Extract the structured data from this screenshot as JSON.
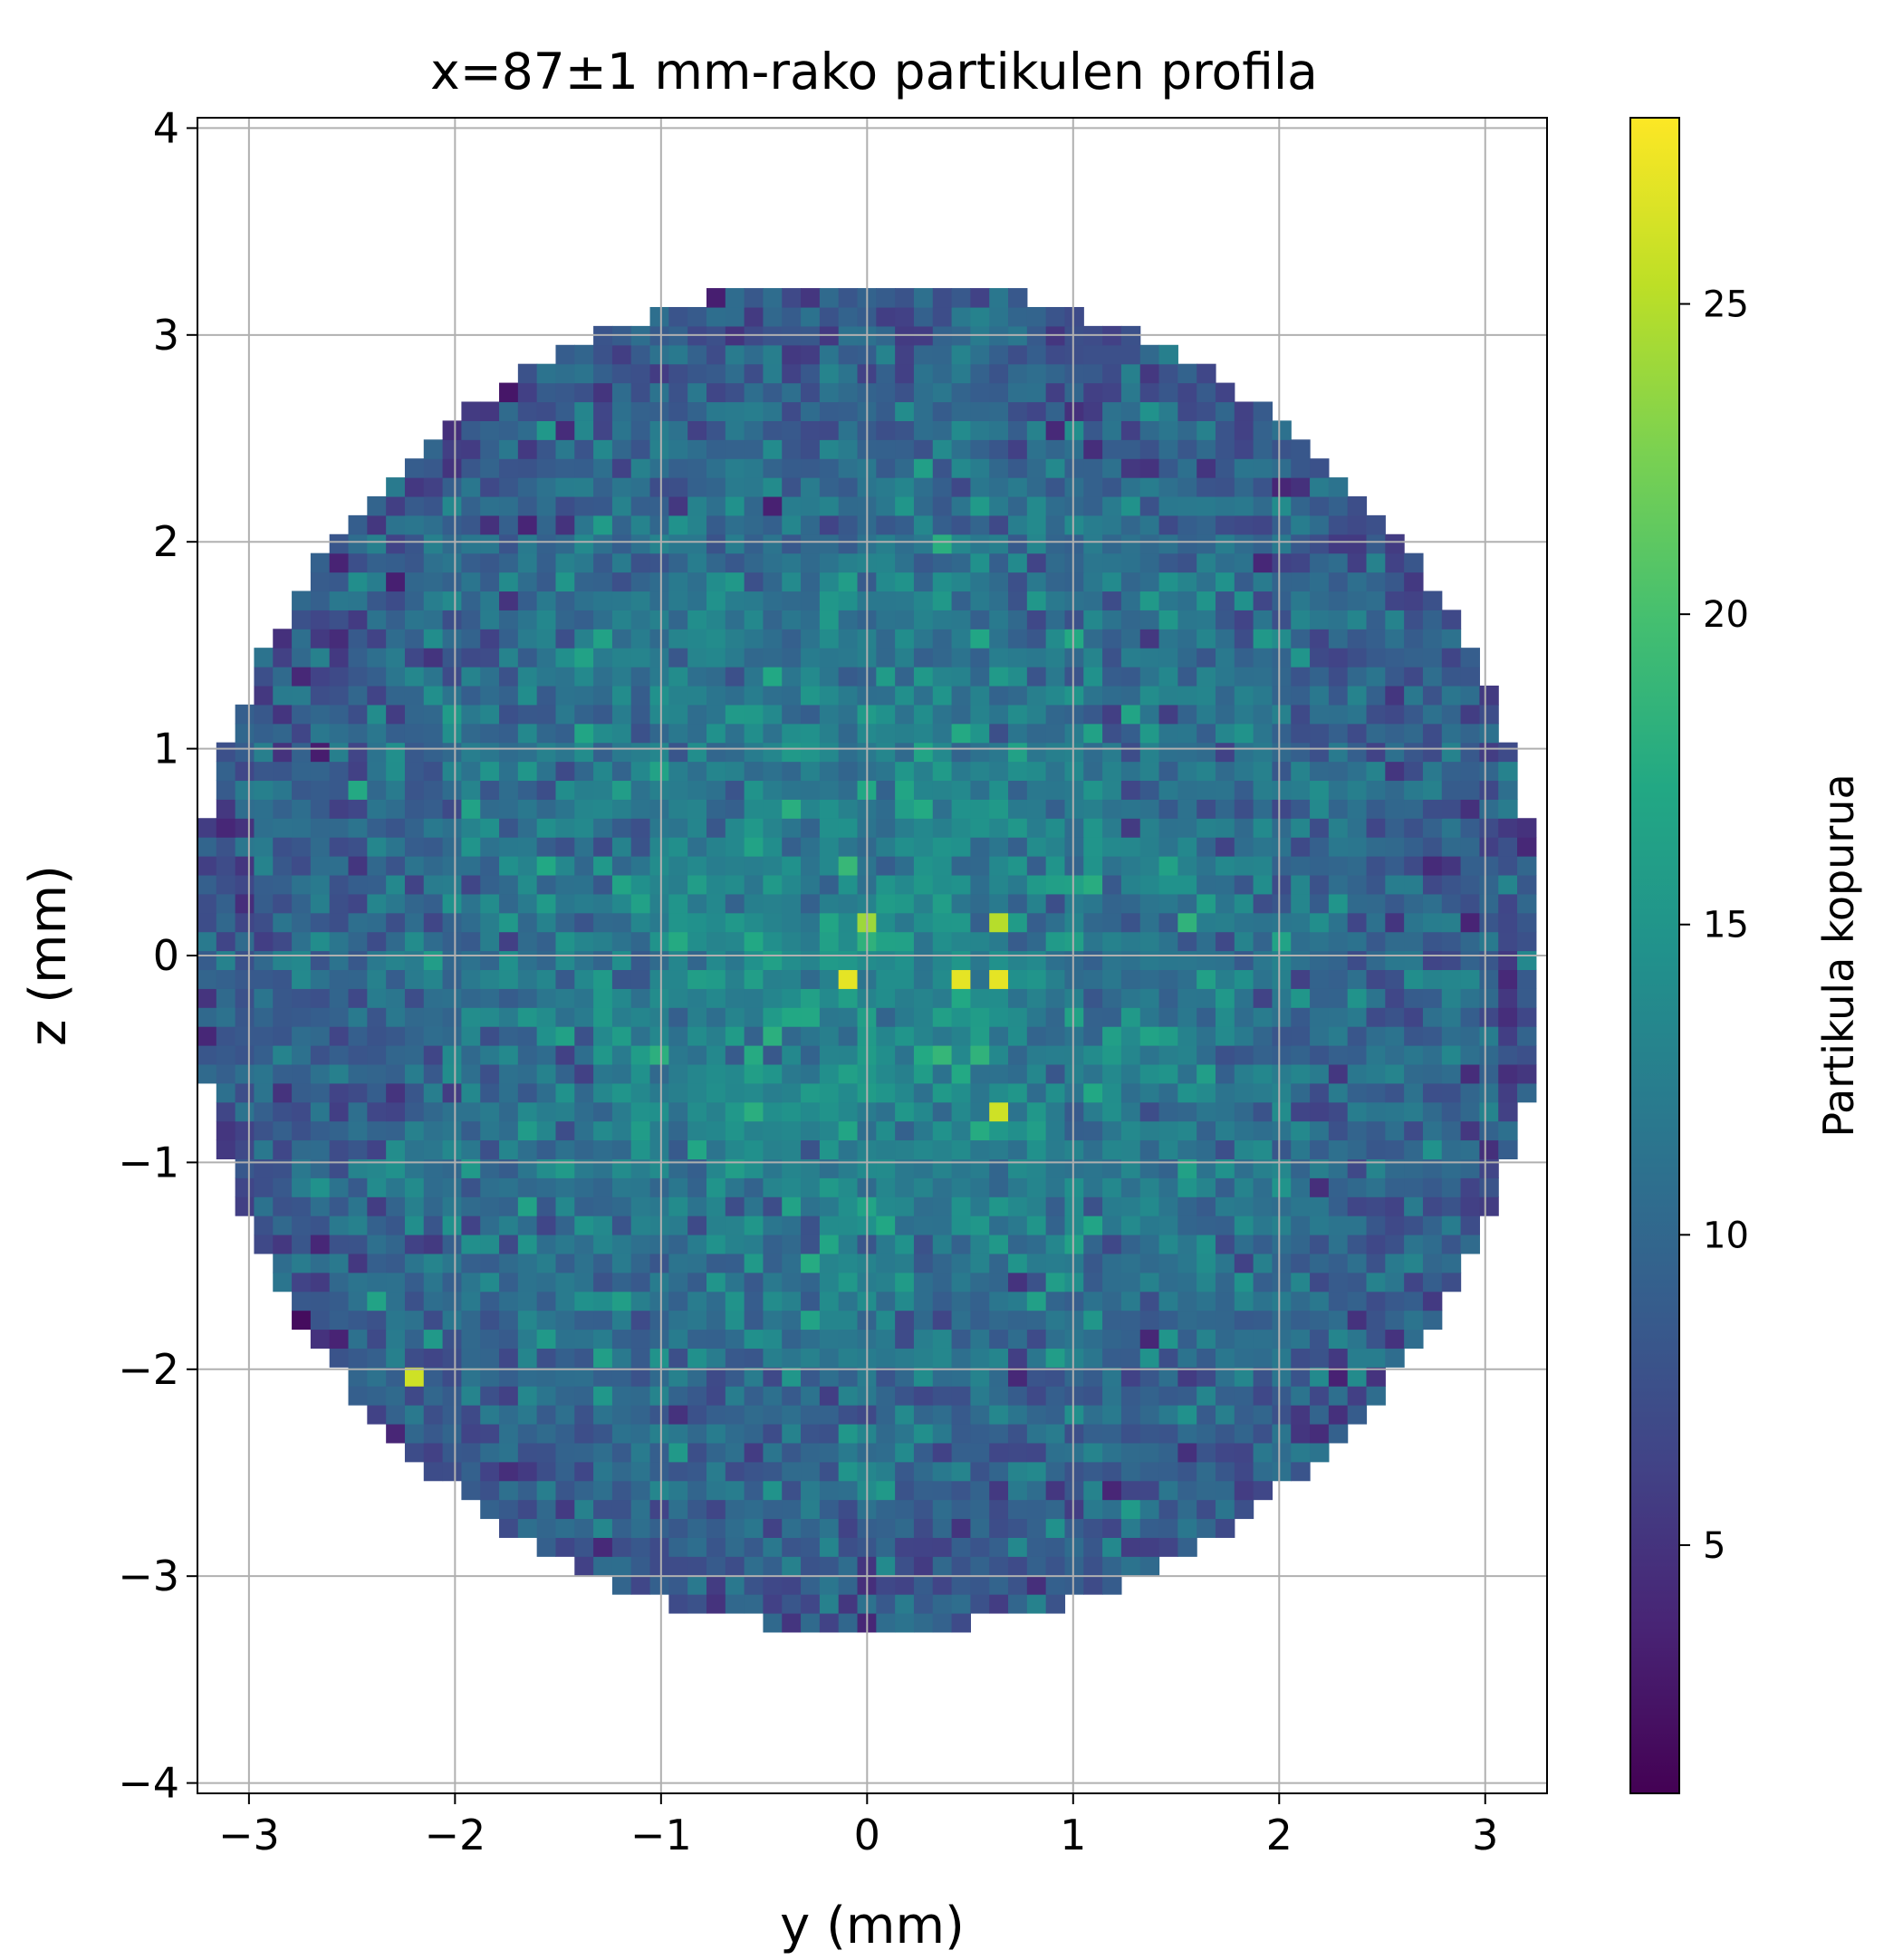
{
  "chart_data": {
    "type": "heatmap",
    "title": "x=87±1 mm-rako partikulen profila",
    "xlabel": "y (mm)",
    "ylabel": "z (mm)",
    "xlim": [
      -3.25,
      3.3
    ],
    "ylim": [
      -4.05,
      4.05
    ],
    "xticks": [
      -3,
      -2,
      -1,
      0,
      1,
      2,
      3
    ],
    "xtick_labels": [
      "−3",
      "−2",
      "−1",
      "0",
      "1",
      "2",
      "3"
    ],
    "yticks": [
      -4,
      -3,
      -2,
      -1,
      0,
      1,
      2,
      3,
      4
    ],
    "ytick_labels": [
      "−4",
      "−3",
      "−2",
      "−1",
      "0",
      "1",
      "2",
      "3",
      "4"
    ],
    "grid": true,
    "colormap": "viridis",
    "colorbar": {
      "label": "Partikula kopurua",
      "min": 1,
      "max": 28,
      "ticks": [
        5,
        10,
        15,
        20,
        25
      ],
      "tick_labels": [
        "5",
        "10",
        "15",
        "20",
        "25"
      ]
    },
    "bins": {
      "y_min": -3.25,
      "y_max": 3.3,
      "z_min": -3.27,
      "z_max": 3.27,
      "bin_size": 0.0915,
      "region_radius_mm": 3.27,
      "mean_counts_center": 14,
      "mean_counts_edge": 8
    },
    "hotspots": [
      {
        "y": -0.1,
        "z": -0.12,
        "value": 27
      },
      {
        "y": 0.45,
        "z": -0.12,
        "value": 27
      },
      {
        "y": 0.63,
        "z": -0.12,
        "value": 27
      },
      {
        "y": 0.63,
        "z": -0.75,
        "value": 26
      },
      {
        "y": -2.2,
        "z": -2.05,
        "value": 26
      },
      {
        "y": 0.63,
        "z": 0.15,
        "value": 25
      },
      {
        "y": 0.0,
        "z": 0.15,
        "value": 24
      }
    ]
  }
}
